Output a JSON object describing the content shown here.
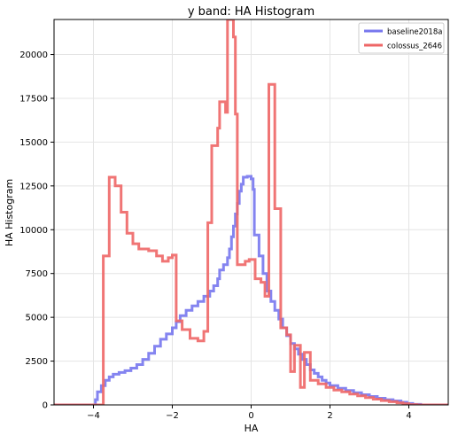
{
  "chart_data": {
    "type": "step",
    "title": "y band: HA Histogram",
    "xlabel": "HA",
    "ylabel": "HA Histogram",
    "xlim": [
      -5,
      5
    ],
    "ylim": [
      0,
      22000
    ],
    "xticks": [
      -4,
      -2,
      0,
      2,
      4
    ],
    "yticks": [
      0,
      2500,
      5000,
      7500,
      10000,
      12500,
      15000,
      17500,
      20000
    ],
    "grid": true,
    "legend_position": "top-right",
    "series": [
      {
        "name": "baseline2018a",
        "color": "#7777ee",
        "points": [
          [
            -5.0,
            0
          ],
          [
            -4.0,
            0
          ],
          [
            -3.95,
            300
          ],
          [
            -3.9,
            750
          ],
          [
            -3.8,
            1100
          ],
          [
            -3.7,
            1400
          ],
          [
            -3.6,
            1600
          ],
          [
            -3.5,
            1750
          ],
          [
            -3.35,
            1850
          ],
          [
            -3.2,
            1950
          ],
          [
            -3.05,
            2100
          ],
          [
            -2.9,
            2300
          ],
          [
            -2.75,
            2600
          ],
          [
            -2.6,
            2950
          ],
          [
            -2.45,
            3350
          ],
          [
            -2.3,
            3750
          ],
          [
            -2.15,
            4050
          ],
          [
            -2.0,
            4400
          ],
          [
            -1.9,
            4750
          ],
          [
            -1.8,
            5100
          ],
          [
            -1.65,
            5400
          ],
          [
            -1.5,
            5650
          ],
          [
            -1.35,
            5900
          ],
          [
            -1.2,
            6200
          ],
          [
            -1.05,
            6500
          ],
          [
            -0.95,
            6800
          ],
          [
            -0.85,
            7200
          ],
          [
            -0.8,
            7700
          ],
          [
            -0.7,
            8000
          ],
          [
            -0.6,
            8400
          ],
          [
            -0.55,
            8900
          ],
          [
            -0.5,
            9600
          ],
          [
            -0.45,
            10200
          ],
          [
            -0.4,
            10900
          ],
          [
            -0.35,
            11500
          ],
          [
            -0.3,
            12200
          ],
          [
            -0.25,
            12600
          ],
          [
            -0.2,
            13000
          ],
          [
            -0.1,
            13050
          ],
          [
            0.0,
            12900
          ],
          [
            0.05,
            12300
          ],
          [
            0.08,
            9700
          ],
          [
            0.12,
            9700
          ],
          [
            0.2,
            8500
          ],
          [
            0.3,
            7500
          ],
          [
            0.4,
            6500
          ],
          [
            0.5,
            5900
          ],
          [
            0.6,
            5400
          ],
          [
            0.7,
            4900
          ],
          [
            0.8,
            4400
          ],
          [
            0.9,
            3950
          ],
          [
            1.0,
            3500
          ],
          [
            1.1,
            3200
          ],
          [
            1.2,
            2900
          ],
          [
            1.3,
            2600
          ],
          [
            1.4,
            2300
          ],
          [
            1.5,
            2000
          ],
          [
            1.6,
            1800
          ],
          [
            1.7,
            1600
          ],
          [
            1.8,
            1400
          ],
          [
            1.9,
            1250
          ],
          [
            2.0,
            1100
          ],
          [
            2.2,
            950
          ],
          [
            2.4,
            820
          ],
          [
            2.6,
            700
          ],
          [
            2.8,
            580
          ],
          [
            3.0,
            480
          ],
          [
            3.2,
            380
          ],
          [
            3.4,
            300
          ],
          [
            3.6,
            230
          ],
          [
            3.8,
            150
          ],
          [
            3.95,
            80
          ],
          [
            4.1,
            30
          ],
          [
            4.3,
            0
          ],
          [
            5.0,
            0
          ]
        ]
      },
      {
        "name": "colossus_2646",
        "color": "#ee6666",
        "points": [
          [
            -5.0,
            0
          ],
          [
            -3.8,
            0
          ],
          [
            -3.75,
            8500
          ],
          [
            -3.6,
            13000
          ],
          [
            -3.45,
            12500
          ],
          [
            -3.3,
            11000
          ],
          [
            -3.15,
            9800
          ],
          [
            -3.0,
            9200
          ],
          [
            -2.85,
            8900
          ],
          [
            -2.6,
            8800
          ],
          [
            -2.4,
            8500
          ],
          [
            -2.25,
            8200
          ],
          [
            -2.1,
            8400
          ],
          [
            -2.0,
            8550
          ],
          [
            -1.9,
            4800
          ],
          [
            -1.75,
            4300
          ],
          [
            -1.55,
            3800
          ],
          [
            -1.35,
            3650
          ],
          [
            -1.2,
            4200
          ],
          [
            -1.1,
            10400
          ],
          [
            -1.0,
            14800
          ],
          [
            -0.85,
            15800
          ],
          [
            -0.8,
            17300
          ],
          [
            -0.65,
            16700
          ],
          [
            -0.6,
            22000
          ],
          [
            -0.45,
            21000
          ],
          [
            -0.4,
            16600
          ],
          [
            -0.35,
            8000
          ],
          [
            -0.3,
            8000
          ],
          [
            -0.22,
            8000
          ],
          [
            -0.15,
            8200
          ],
          [
            -0.05,
            8300
          ],
          [
            0.1,
            7200
          ],
          [
            0.25,
            7000
          ],
          [
            0.35,
            6200
          ],
          [
            0.45,
            18300
          ],
          [
            0.6,
            11200
          ],
          [
            0.75,
            4400
          ],
          [
            0.9,
            4000
          ],
          [
            1.0,
            1900
          ],
          [
            1.1,
            3400
          ],
          [
            1.25,
            1000
          ],
          [
            1.35,
            3000
          ],
          [
            1.5,
            1400
          ],
          [
            1.7,
            1200
          ],
          [
            1.9,
            1000
          ],
          [
            2.1,
            850
          ],
          [
            2.3,
            750
          ],
          [
            2.5,
            620
          ],
          [
            2.7,
            520
          ],
          [
            2.9,
            420
          ],
          [
            3.1,
            330
          ],
          [
            3.3,
            250
          ],
          [
            3.5,
            180
          ],
          [
            3.7,
            120
          ],
          [
            3.85,
            70
          ],
          [
            4.0,
            20
          ],
          [
            4.2,
            0
          ],
          [
            5.0,
            0
          ]
        ]
      }
    ]
  }
}
